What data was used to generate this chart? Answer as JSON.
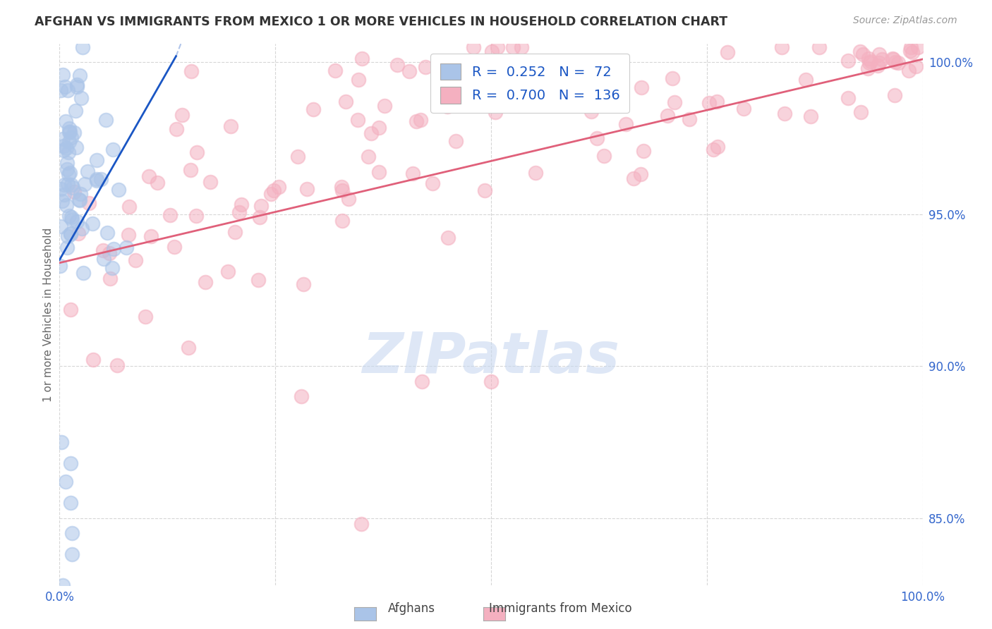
{
  "title": "AFGHAN VS IMMIGRANTS FROM MEXICO 1 OR MORE VEHICLES IN HOUSEHOLD CORRELATION CHART",
  "source": "Source: ZipAtlas.com",
  "ylabel": "1 or more Vehicles in Household",
  "r_afghan": 0.252,
  "n_afghan": 72,
  "r_mexico": 0.7,
  "n_mexico": 136,
  "afghan_color": "#aac4e8",
  "mexican_color": "#f4b0c0",
  "afghan_line_color": "#1a56c4",
  "mexico_line_color": "#e0607a",
  "legend_text_color": "#1a56c4",
  "watermark_color": "#c8d8f0",
  "background_color": "#ffffff",
  "grid_color": "#cccccc",
  "tick_color": "#3366cc",
  "ylabel_color": "#666666",
  "title_color": "#333333",
  "source_color": "#999999",
  "xlim": [
    0.0,
    1.0
  ],
  "ylim": [
    0.828,
    1.006
  ],
  "yticks": [
    0.85,
    0.9,
    0.95,
    1.0
  ],
  "ytick_labels": [
    "85.0%",
    "90.0%",
    "95.0%",
    "100.0%"
  ],
  "afghan_line_x0": 0.0,
  "afghan_line_y0": 0.935,
  "afghan_line_x1": 0.135,
  "afghan_line_y1": 1.002,
  "mexico_line_x0": 0.0,
  "mexico_line_y0": 0.934,
  "mexico_line_x1": 1.0,
  "mexico_line_y1": 1.001
}
